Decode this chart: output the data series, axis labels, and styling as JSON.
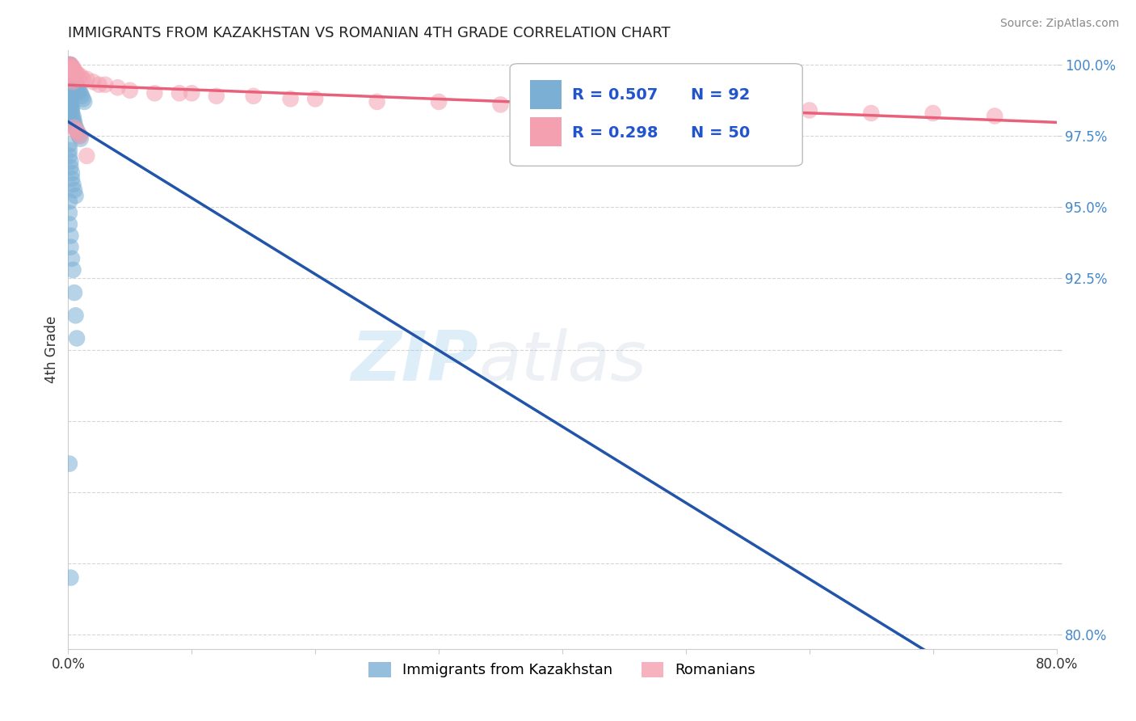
{
  "title": "IMMIGRANTS FROM KAZAKHSTAN VS ROMANIAN 4TH GRADE CORRELATION CHART",
  "source_text": "Source: ZipAtlas.com",
  "ylabel": "4th Grade",
  "x_min": 0.0,
  "x_max": 0.8,
  "y_min": 0.795,
  "y_max": 1.005,
  "y_ticks": [
    0.8,
    0.825,
    0.85,
    0.875,
    0.9,
    0.925,
    0.95,
    0.975,
    1.0
  ],
  "y_tick_labels": [
    "80.0%",
    "",
    "",
    "",
    "",
    "92.5%",
    "95.0%",
    "97.5%",
    "100.0%"
  ],
  "x_ticks": [
    0.0,
    0.1,
    0.2,
    0.3,
    0.4,
    0.5,
    0.6,
    0.7,
    0.8
  ],
  "x_tick_labels": [
    "0.0%",
    "",
    "",
    "",
    "",
    "",
    "",
    "",
    "80.0%"
  ],
  "blue_color": "#7BAFD4",
  "pink_color": "#F4A0B0",
  "blue_line_color": "#2255AA",
  "pink_line_color": "#E8607A",
  "R_blue": 0.507,
  "N_blue": 92,
  "R_pink": 0.298,
  "N_pink": 50,
  "legend_label_blue": "Immigrants from Kazakhstan",
  "legend_label_pink": "Romanians",
  "watermark_zip": "ZIP",
  "watermark_atlas": "atlas",
  "blue_x": [
    0.0005,
    0.0008,
    0.001,
    0.001,
    0.001,
    0.001,
    0.001,
    0.001,
    0.001,
    0.001,
    0.001,
    0.001,
    0.001,
    0.001,
    0.001,
    0.002,
    0.002,
    0.002,
    0.002,
    0.002,
    0.002,
    0.002,
    0.002,
    0.002,
    0.002,
    0.003,
    0.003,
    0.003,
    0.003,
    0.003,
    0.003,
    0.003,
    0.004,
    0.004,
    0.004,
    0.004,
    0.004,
    0.005,
    0.005,
    0.005,
    0.006,
    0.006,
    0.007,
    0.007,
    0.008,
    0.009,
    0.01,
    0.011,
    0.012,
    0.013,
    0.001,
    0.001,
    0.001,
    0.001,
    0.002,
    0.002,
    0.002,
    0.002,
    0.003,
    0.003,
    0.003,
    0.004,
    0.004,
    0.005,
    0.005,
    0.006,
    0.007,
    0.008,
    0.009,
    0.01,
    0.001,
    0.001,
    0.001,
    0.002,
    0.002,
    0.003,
    0.003,
    0.004,
    0.005,
    0.006,
    0.001,
    0.001,
    0.001,
    0.002,
    0.002,
    0.003,
    0.004,
    0.005,
    0.006,
    0.007,
    0.001,
    0.002
  ],
  "blue_y": [
    1.0,
    1.0,
    1.0,
    1.0,
    0.999,
    0.999,
    0.999,
    0.998,
    0.998,
    0.998,
    0.997,
    0.997,
    0.996,
    0.996,
    0.995,
    1.0,
    0.999,
    0.999,
    0.998,
    0.998,
    0.997,
    0.997,
    0.996,
    0.995,
    0.994,
    0.999,
    0.998,
    0.997,
    0.996,
    0.995,
    0.994,
    0.993,
    0.998,
    0.997,
    0.996,
    0.995,
    0.994,
    0.997,
    0.996,
    0.995,
    0.994,
    0.993,
    0.993,
    0.992,
    0.991,
    0.991,
    0.99,
    0.989,
    0.988,
    0.987,
    0.99,
    0.989,
    0.988,
    0.987,
    0.988,
    0.987,
    0.986,
    0.985,
    0.985,
    0.984,
    0.983,
    0.982,
    0.981,
    0.98,
    0.979,
    0.978,
    0.977,
    0.976,
    0.975,
    0.974,
    0.972,
    0.97,
    0.968,
    0.966,
    0.964,
    0.962,
    0.96,
    0.958,
    0.956,
    0.954,
    0.952,
    0.948,
    0.944,
    0.94,
    0.936,
    0.932,
    0.928,
    0.92,
    0.912,
    0.904,
    0.86,
    0.82
  ],
  "pink_x": [
    0.001,
    0.001,
    0.001,
    0.002,
    0.002,
    0.002,
    0.003,
    0.003,
    0.004,
    0.004,
    0.005,
    0.005,
    0.006,
    0.007,
    0.008,
    0.01,
    0.012,
    0.015,
    0.02,
    0.025,
    0.03,
    0.04,
    0.05,
    0.07,
    0.09,
    0.1,
    0.12,
    0.15,
    0.18,
    0.2,
    0.25,
    0.3,
    0.35,
    0.4,
    0.45,
    0.5,
    0.55,
    0.6,
    0.65,
    0.7,
    0.75,
    0.001,
    0.002,
    0.003,
    0.004,
    0.005,
    0.006,
    0.008,
    0.01,
    0.015
  ],
  "pink_y": [
    1.0,
    0.999,
    0.998,
    1.0,
    0.999,
    0.998,
    0.999,
    0.998,
    0.999,
    0.998,
    0.998,
    0.997,
    0.997,
    0.997,
    0.996,
    0.996,
    0.995,
    0.995,
    0.994,
    0.993,
    0.993,
    0.992,
    0.991,
    0.99,
    0.99,
    0.99,
    0.989,
    0.989,
    0.988,
    0.988,
    0.987,
    0.987,
    0.986,
    0.986,
    0.985,
    0.985,
    0.984,
    0.984,
    0.983,
    0.983,
    0.982,
    0.997,
    0.996,
    0.995,
    0.994,
    0.978,
    0.977,
    0.976,
    0.975,
    0.968
  ]
}
